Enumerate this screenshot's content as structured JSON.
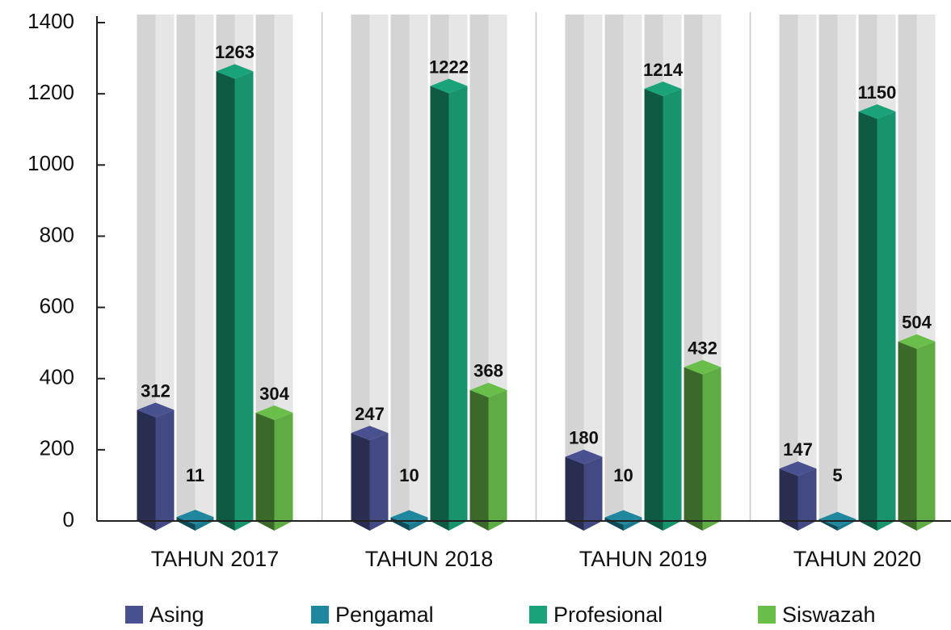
{
  "chart_data": {
    "type": "bar",
    "categories": [
      "TAHUN 2017",
      "TAHUN 2018",
      "TAHUN 2019",
      "TAHUN 2020"
    ],
    "series": [
      {
        "name": "Asing",
        "color": "#4a5190",
        "values": [
          312,
          247,
          180,
          147
        ]
      },
      {
        "name": "Pengamal",
        "color": "#1f879e",
        "values": [
          11,
          10,
          10,
          5
        ]
      },
      {
        "name": "Profesional",
        "color": "#1aa37a",
        "values": [
          1263,
          1222,
          1214,
          1150
        ]
      },
      {
        "name": "Siswazah",
        "color": "#6abf4b",
        "values": [
          304,
          368,
          432,
          504
        ]
      }
    ],
    "ylim": [
      0,
      1400
    ],
    "yticks": [
      0,
      200,
      400,
      600,
      800,
      1000,
      1200,
      1400
    ]
  }
}
